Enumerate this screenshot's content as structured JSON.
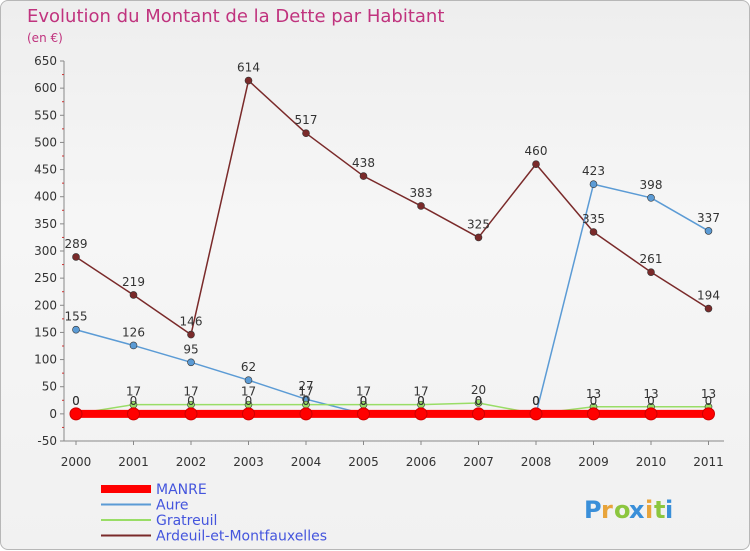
{
  "chart_data": {
    "type": "line",
    "title": "Evolution du Montant de la Dette par Habitant",
    "subtitle": "(en €)",
    "x": [
      "2000",
      "2001",
      "2002",
      "2003",
      "2004",
      "2005",
      "2006",
      "2007",
      "2008",
      "2009",
      "2010",
      "2011"
    ],
    "ylim": [
      -50,
      650
    ],
    "yticks": [
      -50,
      0,
      50,
      100,
      150,
      200,
      250,
      300,
      350,
      400,
      450,
      500,
      550,
      600,
      650
    ],
    "grid": false,
    "legend_position": "bottom-left",
    "series": [
      {
        "name": "MANRE",
        "color": "#ff0000",
        "values": [
          0,
          0,
          0,
          0,
          0,
          0,
          0,
          0,
          0,
          0,
          0,
          0
        ]
      },
      {
        "name": "Aure",
        "color": "#5b9bd5",
        "values": [
          155,
          126,
          95,
          62,
          27,
          0,
          0,
          0,
          0,
          423,
          398,
          337
        ]
      },
      {
        "name": "Gratreuil",
        "color": "#99dd66",
        "values": [
          0,
          17,
          17,
          17,
          17,
          17,
          17,
          20,
          0,
          13,
          13,
          13
        ]
      },
      {
        "name": "Ardeuil-et-Montfauxelles",
        "color": "#7a2a2a",
        "values": [
          289,
          219,
          146,
          614,
          517,
          438,
          383,
          325,
          460,
          335,
          261,
          194
        ]
      }
    ]
  },
  "logo": {
    "text": "Proxiti"
  }
}
